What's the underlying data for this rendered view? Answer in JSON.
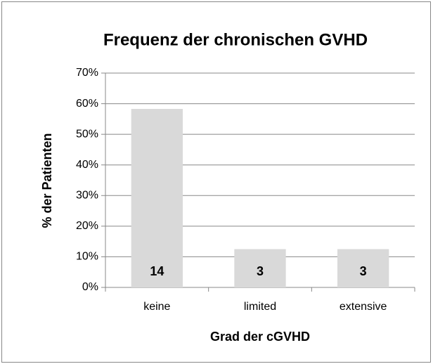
{
  "chart_data": {
    "type": "bar",
    "title": "Frequenz der chronischen GVHD",
    "x_label": "Grad der cGVHD",
    "y_label": "% der Patienten",
    "categories": [
      "keine",
      "limited",
      "extensive"
    ],
    "values": [
      58.3,
      12.5,
      12.5
    ],
    "counts": [
      14,
      3,
      3
    ],
    "color": "#d9d9d9",
    "ylim": [
      0,
      70
    ],
    "yticks": [
      {
        "value": 0,
        "label": "0%"
      },
      {
        "value": 10,
        "label": "10%"
      },
      {
        "value": 20,
        "label": "20%"
      },
      {
        "value": 30,
        "label": "30%"
      },
      {
        "value": 40,
        "label": "40%"
      },
      {
        "value": 50,
        "label": "50%"
      },
      {
        "value": 60,
        "label": "60%"
      },
      {
        "value": 70,
        "label": "70%"
      }
    ],
    "grid": true
  }
}
